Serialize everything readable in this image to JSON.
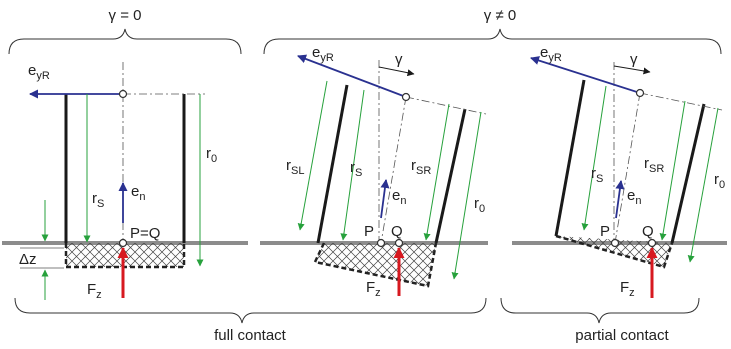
{
  "headers": {
    "gamma_zero": "γ = 0",
    "gamma_nonzero": "γ ≠ 0"
  },
  "captions": {
    "full": "full contact",
    "partial": "partial contact"
  },
  "symbols": {
    "e_base": "e",
    "e_y_sub": "yR",
    "e_n_sub": "n",
    "r_base": "r",
    "r_S_sub": "S",
    "r_SL_sub": "SL",
    "r_SR_sub": "SR",
    "r_0_sub": "0",
    "F_base": "F",
    "F_sub": "z",
    "P": "P",
    "Q": "Q",
    "PQ": "P=Q",
    "gamma": "γ",
    "delta_z": "Δz"
  },
  "colors": {
    "axis": "#2a3190",
    "radius": "#27a13c",
    "force": "#d71920",
    "ground": "#8c8c8c",
    "wheel": "#1a1a1a"
  }
}
